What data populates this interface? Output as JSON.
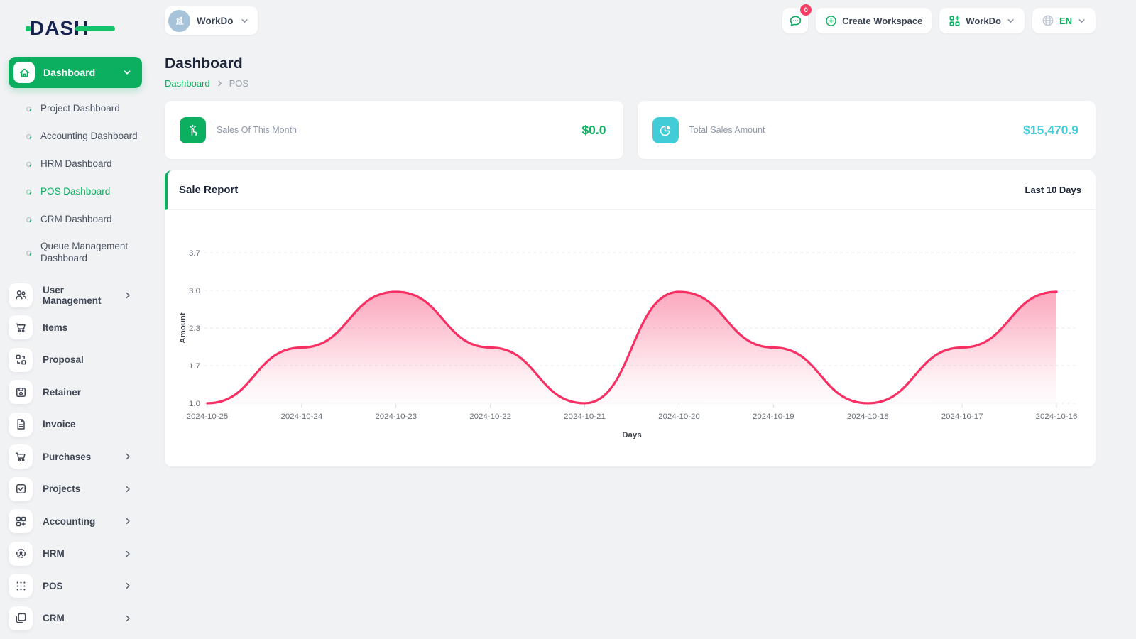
{
  "brand": {
    "logo_text": "DASH"
  },
  "topbar": {
    "workspace_switcher": {
      "label": "WorkDo"
    },
    "messages_badge": "0",
    "create_workspace_label": "Create Workspace",
    "workdo_menu_label": "WorkDo",
    "language": "EN"
  },
  "sidebar": {
    "dashboard_group": {
      "label": "Dashboard",
      "children": [
        {
          "label": "Project Dashboard"
        },
        {
          "label": "Accounting Dashboard"
        },
        {
          "label": "HRM Dashboard"
        },
        {
          "label": "POS Dashboard"
        },
        {
          "label": "CRM Dashboard"
        },
        {
          "label": "Queue Management Dashboard"
        }
      ]
    },
    "items": [
      {
        "label": "User Management"
      },
      {
        "label": "Items"
      },
      {
        "label": "Proposal"
      },
      {
        "label": "Retainer"
      },
      {
        "label": "Invoice"
      },
      {
        "label": "Purchases"
      },
      {
        "label": "Projects"
      },
      {
        "label": "Accounting"
      },
      {
        "label": "HRM"
      },
      {
        "label": "POS"
      },
      {
        "label": "CRM"
      }
    ]
  },
  "page": {
    "title": "Dashboard",
    "breadcrumb": {
      "parent": "Dashboard",
      "current": "POS"
    }
  },
  "stats": [
    {
      "label": "Sales Of This Month",
      "value": "$0.0",
      "color": "#0caf60"
    },
    {
      "label": "Total Sales Amount",
      "value": "$15,470.9",
      "color": "#41ccd8"
    }
  ],
  "sale_report": {
    "title": "Sale Report",
    "range_label": "Last 10 Days"
  },
  "colors": {
    "accent_green": "#0caf60",
    "teal": "#41ccd8",
    "pink_line": "#f72f63",
    "badge_red": "#fd3c64"
  },
  "chart_data": {
    "type": "area",
    "title": "Sale Report",
    "x": [
      "2024-10-25",
      "2024-10-24",
      "2024-10-23",
      "2024-10-22",
      "2024-10-21",
      "2024-10-20",
      "2024-10-19",
      "2024-10-18",
      "2024-10-17",
      "2024-10-16"
    ],
    "series": [
      {
        "name": "Amount",
        "values": [
          1.0,
          2.0,
          3.0,
          2.0,
          1.0,
          3.0,
          2.0,
          1.0,
          2.0,
          3.0
        ]
      }
    ],
    "xlabel": "Days",
    "ylabel": "Amount",
    "ylim": [
      1.0,
      3.7
    ],
    "yticks": [
      3.7,
      3.0,
      2.3,
      1.7,
      1.0
    ],
    "grid": "horizontal-dashed",
    "legend": "none",
    "line_color": "#f72f63"
  }
}
